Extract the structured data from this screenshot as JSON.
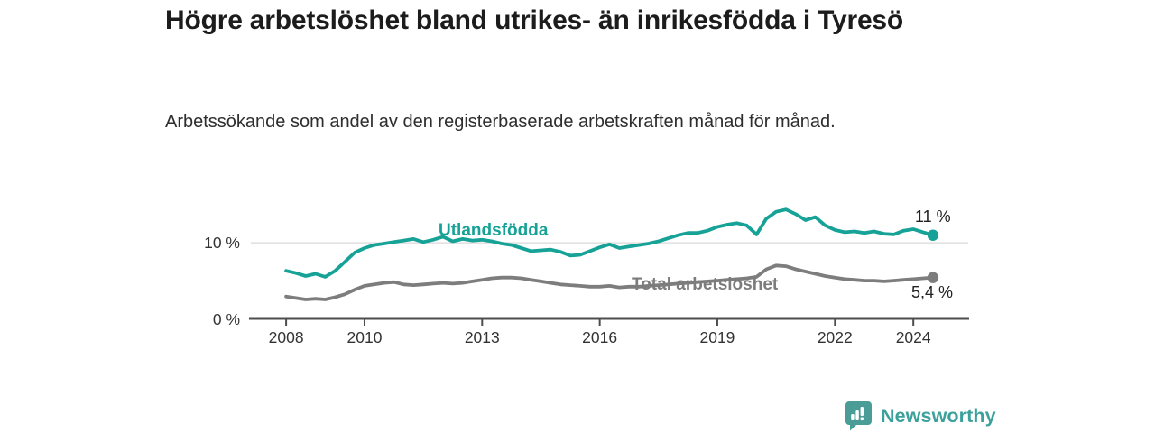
{
  "header": {
    "title": "Högre arbetslöshet bland utrikes- än inrikesfödda i Tyresö",
    "subtitle": "Arbetssökande som andel av den registerbaserade arbetskraften månad för månad."
  },
  "branding": {
    "name": "Newsworthy",
    "color": "#3da19b",
    "icon": "newsworthy-speech-bubble-bar-chart-icon",
    "icon_color": "#4a9d97"
  },
  "chart_data": {
    "type": "line",
    "title": "Högre arbetslöshet bland utrikes- än inrikesfödda i Tyresö",
    "subtitle": "Arbetssökande som andel av den registerbaserade arbetskraften månad för månad.",
    "xlabel": "",
    "ylabel": "",
    "xlim": [
      2007.1,
      2025.4
    ],
    "ylim": [
      0,
      15.5
    ],
    "x_ticks": [
      2008,
      2010,
      2013,
      2016,
      2019,
      2022,
      2024
    ],
    "x_tick_labels": [
      "2008",
      "2010",
      "2013",
      "2016",
      "2019",
      "2022",
      "2024"
    ],
    "y_ticks": [
      0,
      10
    ],
    "y_tick_labels": [
      "0 %",
      "10 %"
    ],
    "grid_y": [
      10
    ],
    "legend_position": "inline-labels",
    "x": [
      2008,
      2008.25,
      2008.5,
      2008.75,
      2009,
      2009.25,
      2009.5,
      2009.75,
      2010,
      2010.25,
      2010.5,
      2010.75,
      2011,
      2011.25,
      2011.5,
      2011.75,
      2012,
      2012.25,
      2012.5,
      2012.75,
      2013,
      2013.25,
      2013.5,
      2013.75,
      2014,
      2014.25,
      2014.5,
      2014.75,
      2015,
      2015.25,
      2015.5,
      2015.75,
      2016,
      2016.25,
      2016.5,
      2016.75,
      2017,
      2017.25,
      2017.5,
      2017.75,
      2018,
      2018.25,
      2018.5,
      2018.75,
      2019,
      2019.25,
      2019.5,
      2019.75,
      2020,
      2020.25,
      2020.5,
      2020.75,
      2021,
      2021.25,
      2021.5,
      2021.75,
      2022,
      2022.25,
      2022.5,
      2022.75,
      2023,
      2023.25,
      2023.5,
      2023.75,
      2024,
      2024.25,
      2024.5
    ],
    "series": [
      {
        "name": "Utlandsfödda",
        "color": "#16a296",
        "end_label": "11 %",
        "end_value": 11.0,
        "values": [
          6.3,
          6.0,
          5.6,
          5.9,
          5.5,
          6.3,
          7.5,
          8.7,
          9.3,
          9.7,
          9.9,
          10.1,
          10.3,
          10.5,
          10.1,
          10.4,
          10.8,
          10.2,
          10.5,
          10.3,
          10.4,
          10.2,
          9.9,
          9.7,
          9.3,
          8.9,
          9.0,
          9.1,
          8.8,
          8.3,
          8.4,
          8.9,
          9.4,
          9.8,
          9.3,
          9.5,
          9.7,
          9.9,
          10.2,
          10.6,
          11.0,
          11.3,
          11.3,
          11.6,
          12.1,
          12.4,
          12.6,
          12.3,
          11.1,
          13.2,
          14.1,
          14.4,
          13.8,
          13.0,
          13.4,
          12.3,
          11.7,
          11.4,
          11.5,
          11.3,
          11.5,
          11.2,
          11.1,
          11.6,
          11.8,
          11.4,
          11.0
        ]
      },
      {
        "name": "Total arbetslöshet",
        "color": "#7d7d7d",
        "end_label": "5,4 %",
        "end_value": 5.4,
        "values": [
          2.9,
          2.7,
          2.5,
          2.6,
          2.5,
          2.8,
          3.2,
          3.8,
          4.3,
          4.5,
          4.7,
          4.8,
          4.5,
          4.4,
          4.5,
          4.6,
          4.7,
          4.6,
          4.7,
          4.9,
          5.1,
          5.3,
          5.4,
          5.4,
          5.3,
          5.1,
          4.9,
          4.7,
          4.5,
          4.4,
          4.3,
          4.2,
          4.2,
          4.3,
          4.1,
          4.2,
          4.2,
          4.3,
          4.4,
          4.5,
          4.6,
          4.7,
          4.8,
          4.9,
          5.0,
          5.1,
          5.2,
          5.3,
          5.5,
          6.5,
          7.0,
          6.9,
          6.5,
          6.2,
          5.9,
          5.6,
          5.4,
          5.2,
          5.1,
          5.0,
          5.0,
          4.9,
          5.0,
          5.1,
          5.2,
          5.3,
          5.4
        ]
      }
    ]
  }
}
